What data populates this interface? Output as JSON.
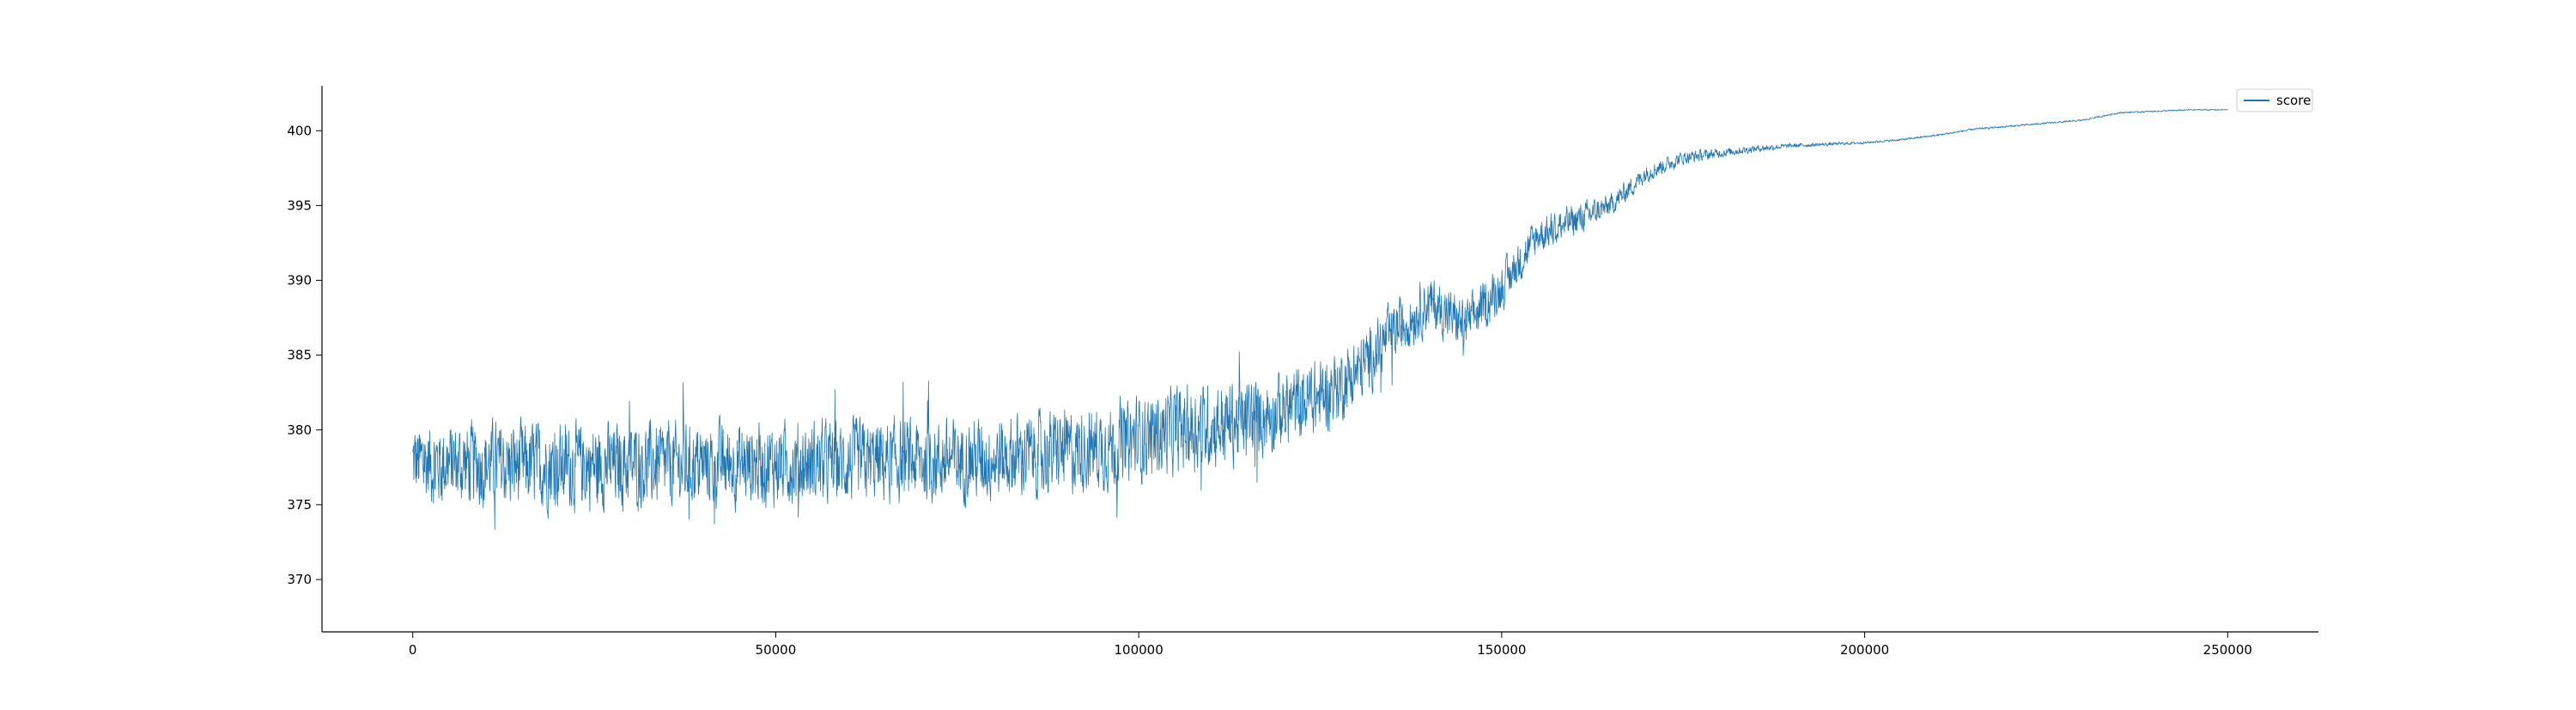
{
  "chart_data": {
    "type": "line",
    "title": "",
    "xlabel": "",
    "ylabel": "",
    "xlim": [
      -12500,
      262500
    ],
    "ylim": [
      366.5,
      403.0
    ],
    "x_ticks": [
      0,
      50000,
      100000,
      150000,
      200000,
      250000
    ],
    "x_tick_labels": [
      "0",
      "50000",
      "100000",
      "150000",
      "200000",
      "250000"
    ],
    "y_ticks": [
      370,
      375,
      380,
      385,
      390,
      395,
      400
    ],
    "y_tick_labels": [
      "370",
      "375",
      "380",
      "385",
      "390",
      "395",
      "400"
    ],
    "grid": false,
    "legend": {
      "position": "top-right",
      "entries": [
        "score"
      ]
    },
    "series": [
      {
        "name": "score",
        "color": "#1f77b4",
        "trend_x": [
          0,
          20000,
          40000,
          60000,
          80000,
          95000,
          105000,
          115000,
          125000,
          130000,
          135000,
          140000,
          145000,
          150000,
          155000,
          160000,
          165000,
          170000,
          175000,
          180000,
          185000,
          190000,
          195000,
          200000,
          205000,
          210000,
          215000,
          220000,
          225000,
          230000,
          235000,
          240000,
          245000,
          250000
        ],
        "trend_y": [
          377.8,
          377.6,
          377.7,
          377.8,
          378.1,
          378.8,
          380.0,
          380.6,
          382.2,
          383.8,
          386.5,
          388.5,
          387.0,
          389.5,
          393.0,
          394.0,
          395.0,
          397.2,
          398.2,
          398.5,
          398.8,
          399.0,
          399.1,
          399.2,
          399.4,
          399.7,
          400.1,
          400.3,
          400.5,
          400.7,
          401.2,
          401.3,
          401.4,
          401.4
        ],
        "band_x": [
          0,
          20000,
          40000,
          60000,
          80000,
          95000,
          105000,
          115000,
          125000,
          130000,
          135000,
          140000,
          145000,
          150000,
          155000,
          160000,
          165000,
          170000,
          175000,
          180000,
          185000,
          190000,
          200000,
          250000
        ],
        "band_half_width": [
          3.6,
          3.8,
          3.6,
          3.6,
          3.6,
          3.6,
          3.8,
          3.6,
          3.2,
          3.0,
          2.6,
          2.4,
          2.2,
          2.0,
          1.6,
          1.4,
          1.0,
          0.8,
          0.6,
          0.4,
          0.3,
          0.2,
          0.1,
          0.05
        ],
        "points": 5000
      }
    ]
  }
}
